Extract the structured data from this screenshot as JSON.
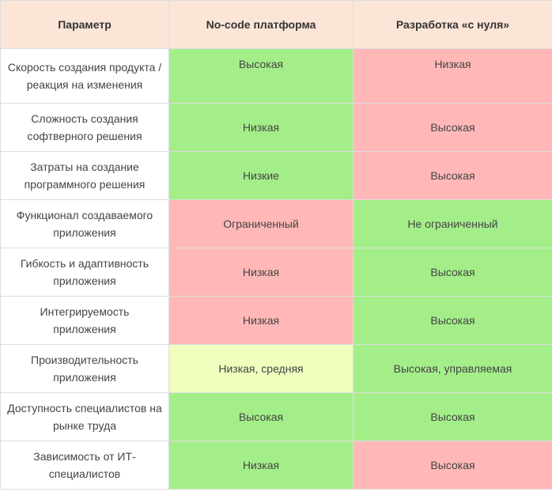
{
  "headers": [
    "Параметр",
    "No-code платформа",
    "Разработка «с нуля»"
  ],
  "colors": {
    "green": "#a4ee8a",
    "red": "#ffb8b7",
    "yellow": "#efffbd",
    "header": "#fbe5d6"
  },
  "rows": [
    {
      "param": "Скорость создания продукта / реакция на изменения",
      "nocode": "Высокая",
      "nocode_color": "green",
      "custom": "Низкая",
      "custom_color": "red"
    },
    {
      "param": "Сложность создания софтверного решения",
      "nocode": "Низкая",
      "nocode_color": "green",
      "custom": "Высокая",
      "custom_color": "red"
    },
    {
      "param": "Затраты на создание программного решения",
      "nocode": "Низкие",
      "nocode_color": "green",
      "custom": "Высокая",
      "custom_color": "red"
    },
    {
      "param": "Функционал создаваемого приложения",
      "nocode": "Ограниченный",
      "nocode_color": "red",
      "custom": "Не ограниченный",
      "custom_color": "green"
    },
    {
      "param": "Гибкость и адаптивность приложения",
      "nocode": "Низкая",
      "nocode_color": "red",
      "custom": "Высокая",
      "custom_color": "green"
    },
    {
      "param": "Интегрируемость приложения",
      "nocode": "Низкая",
      "nocode_color": "red",
      "custom": "Высокая",
      "custom_color": "green"
    },
    {
      "param": "Производительность приложения",
      "nocode": "Низкая, средняя",
      "nocode_color": "yellow",
      "custom": "Высокая, управляемая",
      "custom_color": "green"
    },
    {
      "param": "Доступность специалистов на рынке труда",
      "nocode": "Высокая",
      "nocode_color": "green",
      "custom": "Высокая",
      "custom_color": "green"
    },
    {
      "param": "Зависимость от ИТ-специалистов",
      "nocode": "Низкая",
      "nocode_color": "green",
      "custom": "Высокая",
      "custom_color": "red"
    }
  ]
}
